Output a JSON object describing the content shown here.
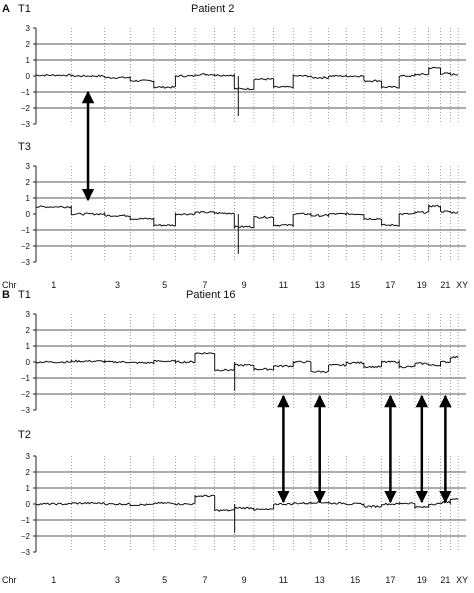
{
  "panel_a": {
    "letter": "A",
    "title": "Patient 2",
    "top_label": "T1",
    "bottom_label": "T3"
  },
  "panel_b": {
    "letter": "B",
    "title": "Patient 16",
    "top_label": "T1",
    "bottom_label": "T2"
  },
  "axis": {
    "chr_label": "Chr",
    "chr_ticks": [
      "1",
      "3",
      "5",
      "7",
      "9",
      "11",
      "13",
      "15",
      "17",
      "19",
      "21",
      "XY"
    ]
  },
  "chart_data": [
    {
      "type": "line",
      "panel": "A",
      "track": "T1",
      "ylim": [
        -3,
        3
      ],
      "yticks": [
        -3,
        -2,
        -1,
        0,
        1,
        2,
        3
      ],
      "grid": "horizontal at 2, 1, -1, -2; dotted chromosome boundaries",
      "segments": [
        {
          "x": [
            1,
            2
          ],
          "y": 0.05
        },
        {
          "x": [
            2,
            3
          ],
          "y": 0.0
        },
        {
          "x": [
            3,
            4
          ],
          "y": -0.1
        },
        {
          "x": [
            4,
            5
          ],
          "y": -0.3
        },
        {
          "x": [
            5,
            6
          ],
          "y": -0.7
        },
        {
          "x": [
            6,
            7
          ],
          "y": 0.0
        },
        {
          "x": [
            7,
            8
          ],
          "y": 0.1
        },
        {
          "x": [
            8,
            9
          ],
          "y": 0.05
        },
        {
          "x": [
            9,
            10
          ],
          "y": -0.8
        },
        {
          "x": [
            10,
            11
          ],
          "y": -0.2
        },
        {
          "x": [
            11,
            12
          ],
          "y": -0.7
        },
        {
          "x": [
            12,
            13
          ],
          "y": 0.0
        },
        {
          "x": [
            13,
            14
          ],
          "y": -0.1
        },
        {
          "x": [
            14,
            15
          ],
          "y": 0.0
        },
        {
          "x": [
            15,
            16
          ],
          "y": 0.0
        },
        {
          "x": [
            16,
            17
          ],
          "y": -0.3
        },
        {
          "x": [
            17,
            18
          ],
          "y": -0.7
        },
        {
          "x": [
            18,
            19
          ],
          "y": 0.0
        },
        {
          "x": [
            19,
            20
          ],
          "y": 0.1
        },
        {
          "x": [
            20,
            21
          ],
          "y": 0.5
        },
        {
          "x": [
            21,
            22
          ],
          "y": 0.15
        },
        {
          "x": [
            22,
            23
          ],
          "y": 0.1
        }
      ]
    },
    {
      "type": "line",
      "panel": "A",
      "track": "T3",
      "ylim": [
        -3,
        3
      ],
      "yticks": [
        -3,
        -2,
        -1,
        0,
        1,
        2,
        3
      ],
      "segments": [
        {
          "x": [
            1,
            2
          ],
          "y": 0.45
        },
        {
          "x": [
            2,
            3
          ],
          "y": 0.0
        },
        {
          "x": [
            3,
            4
          ],
          "y": -0.1
        },
        {
          "x": [
            4,
            5
          ],
          "y": -0.3
        },
        {
          "x": [
            5,
            6
          ],
          "y": -0.7
        },
        {
          "x": [
            6,
            7
          ],
          "y": 0.0
        },
        {
          "x": [
            7,
            8
          ],
          "y": 0.1
        },
        {
          "x": [
            8,
            9
          ],
          "y": 0.05
        },
        {
          "x": [
            9,
            10
          ],
          "y": -0.8
        },
        {
          "x": [
            10,
            11
          ],
          "y": -0.2
        },
        {
          "x": [
            11,
            12
          ],
          "y": -0.7
        },
        {
          "x": [
            12,
            13
          ],
          "y": 0.0
        },
        {
          "x": [
            13,
            14
          ],
          "y": -0.1
        },
        {
          "x": [
            14,
            15
          ],
          "y": 0.0
        },
        {
          "x": [
            15,
            16
          ],
          "y": 0.0
        },
        {
          "x": [
            16,
            17
          ],
          "y": -0.3
        },
        {
          "x": [
            17,
            18
          ],
          "y": -0.7
        },
        {
          "x": [
            18,
            19
          ],
          "y": 0.0
        },
        {
          "x": [
            19,
            20
          ],
          "y": 0.1
        },
        {
          "x": [
            20,
            21
          ],
          "y": 0.5
        },
        {
          "x": [
            21,
            22
          ],
          "y": 0.15
        },
        {
          "x": [
            22,
            23
          ],
          "y": 0.1
        }
      ]
    },
    {
      "type": "line",
      "panel": "B",
      "track": "T1",
      "ylim": [
        -3,
        3
      ],
      "yticks": [
        -3,
        -2,
        -1,
        0,
        1,
        2,
        3
      ],
      "segments": [
        {
          "x": [
            1,
            2
          ],
          "y": 0.0
        },
        {
          "x": [
            2,
            3
          ],
          "y": 0.05
        },
        {
          "x": [
            3,
            4
          ],
          "y": 0.0
        },
        {
          "x": [
            4,
            5
          ],
          "y": -0.05
        },
        {
          "x": [
            5,
            6
          ],
          "y": 0.05
        },
        {
          "x": [
            6,
            7
          ],
          "y": 0.0
        },
        {
          "x": [
            7,
            8
          ],
          "y": 0.55
        },
        {
          "x": [
            8,
            9
          ],
          "y": -0.5
        },
        {
          "x": [
            9,
            10
          ],
          "y": -0.2
        },
        {
          "x": [
            10,
            11
          ],
          "y": -0.45
        },
        {
          "x": [
            11,
            12
          ],
          "y": -0.25
        },
        {
          "x": [
            12,
            13
          ],
          "y": 0.0
        },
        {
          "x": [
            13,
            14
          ],
          "y": -0.6
        },
        {
          "x": [
            14,
            15
          ],
          "y": -0.2
        },
        {
          "x": [
            15,
            16
          ],
          "y": -0.05
        },
        {
          "x": [
            16,
            17
          ],
          "y": -0.3
        },
        {
          "x": [
            17,
            18
          ],
          "y": 0.0
        },
        {
          "x": [
            18,
            19
          ],
          "y": -0.3
        },
        {
          "x": [
            19,
            20
          ],
          "y": -0.1
        },
        {
          "x": [
            20,
            21
          ],
          "y": -0.2
        },
        {
          "x": [
            21,
            22
          ],
          "y": 0.0
        },
        {
          "x": [
            22,
            23
          ],
          "y": 0.3
        }
      ]
    },
    {
      "type": "line",
      "panel": "B",
      "track": "T2",
      "ylim": [
        -3,
        3
      ],
      "yticks": [
        -3,
        -2,
        -1,
        0,
        1,
        2,
        3
      ],
      "segments": [
        {
          "x": [
            1,
            2
          ],
          "y": 0.0
        },
        {
          "x": [
            2,
            3
          ],
          "y": 0.05
        },
        {
          "x": [
            3,
            4
          ],
          "y": 0.0
        },
        {
          "x": [
            4,
            5
          ],
          "y": -0.05
        },
        {
          "x": [
            5,
            6
          ],
          "y": 0.05
        },
        {
          "x": [
            6,
            7
          ],
          "y": 0.0
        },
        {
          "x": [
            7,
            8
          ],
          "y": 0.5
        },
        {
          "x": [
            8,
            9
          ],
          "y": -0.4
        },
        {
          "x": [
            9,
            10
          ],
          "y": -0.25
        },
        {
          "x": [
            10,
            11
          ],
          "y": -0.35
        },
        {
          "x": [
            11,
            12
          ],
          "y": 0.0
        },
        {
          "x": [
            12,
            13
          ],
          "y": 0.05
        },
        {
          "x": [
            13,
            14
          ],
          "y": 0.1
        },
        {
          "x": [
            14,
            15
          ],
          "y": 0.05
        },
        {
          "x": [
            15,
            16
          ],
          "y": 0.0
        },
        {
          "x": [
            16,
            17
          ],
          "y": -0.15
        },
        {
          "x": [
            17,
            18
          ],
          "y": 0.0
        },
        {
          "x": [
            18,
            19
          ],
          "y": 0.05
        },
        {
          "x": [
            19,
            20
          ],
          "y": -0.2
        },
        {
          "x": [
            20,
            21
          ],
          "y": 0.0
        },
        {
          "x": [
            21,
            22
          ],
          "y": 0.1
        },
        {
          "x": [
            22,
            23
          ],
          "y": 0.3
        }
      ]
    }
  ],
  "arrows": [
    {
      "panel": "A",
      "chromosome": 2,
      "type": "double"
    },
    {
      "panel": "B",
      "chromosome": 11,
      "type": "double"
    },
    {
      "panel": "B",
      "chromosome": 13,
      "type": "double"
    },
    {
      "panel": "B",
      "chromosome": 17,
      "type": "double"
    },
    {
      "panel": "B",
      "chromosome": 19,
      "type": "double"
    },
    {
      "panel": "B",
      "chromosome": 21,
      "type": "double"
    }
  ],
  "colors": {
    "trace": "#111111",
    "grid": "#222222",
    "boundary": "#666666"
  }
}
